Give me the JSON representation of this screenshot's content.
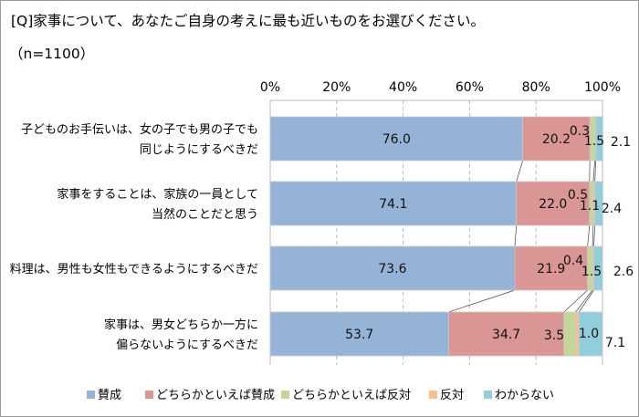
{
  "chart_data": {
    "type": "bar",
    "orientation": "horizontal",
    "stacked": true,
    "title": "[Q]家事について、あなたご自身の考えに最も近いものをお選びください。",
    "subtitle": "（n=1100）",
    "xlim": [
      0,
      100
    ],
    "x_ticks": [
      "0%",
      "20%",
      "40%",
      "60%",
      "80%",
      "100%"
    ],
    "grid": true,
    "legend_position": "bottom",
    "categories": [
      [
        "子どものお手伝いは、女の子でも男の子でも",
        "同じようにするべきだ"
      ],
      [
        "家事をすることは、家族の一員として",
        "当然のことだと思う"
      ],
      [
        "料理は、男性も女性もできるようにするべきだ"
      ],
      [
        "家事は、男女どちらか一方に",
        "偏らないようにするべきだ"
      ]
    ],
    "series": [
      {
        "name": "賛成",
        "color": "#95B3D7",
        "values": [
          76.0,
          74.1,
          73.6,
          53.7
        ]
      },
      {
        "name": "どちらかといえば賛成",
        "color": "#DA9694",
        "values": [
          20.2,
          22.0,
          21.9,
          34.7
        ]
      },
      {
        "name": "どちらかといえば反対",
        "color": "#C4D79B",
        "values": [
          1.5,
          1.1,
          1.5,
          3.5
        ]
      },
      {
        "name": "反対",
        "color": "#FABF8F",
        "values": [
          0.3,
          0.5,
          0.4,
          1.0
        ]
      },
      {
        "name": "わからない",
        "color": "#92CDDC",
        "values": [
          2.1,
          2.4,
          2.6,
          7.1
        ]
      }
    ]
  }
}
